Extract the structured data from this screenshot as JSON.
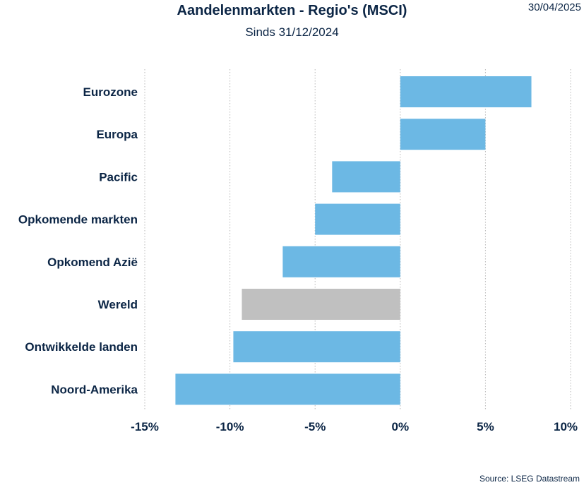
{
  "header": {
    "title": "Aandelenmarkten - Regio's (MSCI)",
    "subtitle": "Sinds 31/12/2024",
    "date": "30/04/2025"
  },
  "footer": {
    "source": "Source: LSEG Datastream"
  },
  "chart_data": {
    "type": "bar",
    "orientation": "horizontal",
    "title": "Aandelenmarkten - Regio's (MSCI)",
    "subtitle": "Sinds 31/12/2024",
    "categories": [
      "Eurozone",
      "Europa",
      "Pacific",
      "Opkomende markten",
      "Opkomend Azië",
      "Wereld",
      "Ontwikkelde landen",
      "Noord-Amerika"
    ],
    "values": [
      7.7,
      5.0,
      -4.0,
      -5.0,
      -6.9,
      -9.3,
      -9.8,
      -13.2
    ],
    "colors": [
      "#6cb8e4",
      "#6cb8e4",
      "#6cb8e4",
      "#6cb8e4",
      "#6cb8e4",
      "#c0c0c0",
      "#6cb8e4",
      "#6cb8e4"
    ],
    "xlim": [
      -15,
      10
    ],
    "xticks": [
      -15,
      -10,
      -5,
      0,
      5,
      10
    ],
    "xtick_labels": [
      "-15%",
      "-10%",
      "-5%",
      "0%",
      "5%",
      "10%"
    ],
    "grid": "vertical dotted",
    "xlabel": "",
    "ylabel": ""
  }
}
